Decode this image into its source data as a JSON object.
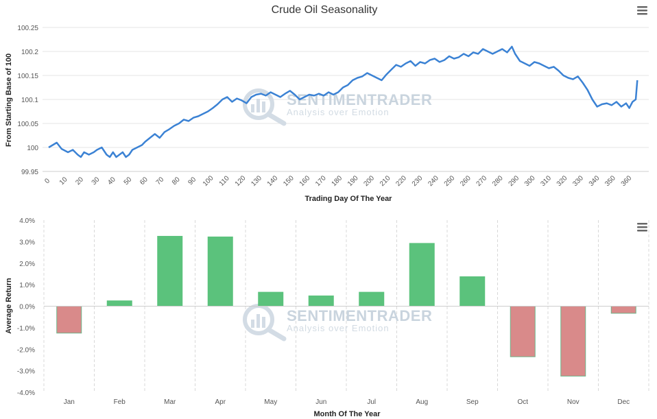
{
  "title": "Crude Oil Seasonality",
  "watermark": {
    "brand": "SENTIMENTRADER",
    "tagline": "Analysis over Emotion"
  },
  "colors": {
    "line": "#3b82d4",
    "positive": "#5bc27c",
    "negative": "#d98a8a",
    "grid": "#e6e6e6",
    "menu": "#666666"
  },
  "chart_data": [
    {
      "type": "line",
      "title": "Crude Oil Seasonality",
      "xlabel": "Trading Day Of The Year",
      "ylabel": "From Starting Base of 100",
      "xlim": [
        0,
        365
      ],
      "ylim": [
        99.95,
        100.25
      ],
      "x_ticks": [
        0,
        10,
        20,
        30,
        40,
        50,
        60,
        70,
        80,
        90,
        100,
        110,
        120,
        130,
        140,
        150,
        160,
        170,
        180,
        190,
        200,
        210,
        220,
        230,
        240,
        250,
        260,
        270,
        280,
        290,
        300,
        310,
        320,
        330,
        340,
        350,
        360
      ],
      "y_ticks": [
        99.95,
        100,
        100.05,
        100.1,
        100.15,
        100.2,
        100.25
      ],
      "y_tick_labels": [
        "99.95",
        "100",
        "100.05",
        "100.1",
        "100.15",
        "100.2",
        "100.25"
      ],
      "grid": "horizontal",
      "series": [
        {
          "x": [
            0,
            5,
            8,
            12,
            15,
            18,
            20,
            22,
            25,
            28,
            30,
            33,
            36,
            38,
            40,
            42,
            44,
            46,
            48,
            50,
            52,
            55,
            58,
            60,
            63,
            66,
            69,
            72,
            75,
            78,
            81,
            84,
            87,
            90,
            93,
            96,
            99,
            102,
            105,
            108,
            111,
            114,
            117,
            120,
            123,
            126,
            129,
            132,
            135,
            138,
            141,
            144,
            147,
            150,
            153,
            156,
            159,
            162,
            165,
            168,
            171,
            174,
            177,
            180,
            183,
            186,
            189,
            192,
            195,
            198,
            201,
            204,
            207,
            210,
            213,
            216,
            219,
            222,
            225,
            228,
            231,
            234,
            237,
            240,
            243,
            246,
            249,
            252,
            255,
            258,
            261,
            264,
            267,
            270,
            273,
            276,
            279,
            282,
            285,
            288,
            290,
            293,
            296,
            299,
            302,
            305,
            308,
            311,
            314,
            317,
            320,
            323,
            326,
            329,
            332,
            335,
            338,
            341,
            344,
            347,
            350,
            353,
            356,
            359,
            361,
            363,
            365,
            366
          ],
          "y": [
            100.0,
            100.01,
            99.997,
            99.99,
            99.995,
            99.985,
            99.98,
            99.99,
            99.985,
            99.99,
            99.995,
            100.0,
            99.985,
            99.98,
            99.99,
            99.98,
            99.985,
            99.99,
            99.98,
            99.985,
            99.995,
            100.0,
            100.005,
            100.012,
            100.02,
            100.028,
            100.02,
            100.032,
            100.038,
            100.045,
            100.05,
            100.058,
            100.055,
            100.062,
            100.065,
            100.07,
            100.075,
            100.082,
            100.09,
            100.1,
            100.105,
            100.095,
            100.102,
            100.098,
            100.092,
            100.105,
            100.11,
            100.112,
            100.108,
            100.115,
            100.11,
            100.105,
            100.112,
            100.118,
            100.11,
            100.1,
            100.105,
            100.11,
            100.108,
            100.112,
            100.108,
            100.115,
            100.11,
            100.115,
            100.125,
            100.13,
            100.14,
            100.145,
            100.148,
            100.155,
            100.15,
            100.145,
            100.14,
            100.152,
            100.162,
            100.172,
            100.168,
            100.175,
            100.18,
            100.17,
            100.178,
            100.175,
            100.182,
            100.185,
            100.178,
            100.182,
            100.19,
            100.185,
            100.188,
            100.195,
            100.19,
            100.198,
            100.195,
            100.205,
            100.2,
            100.195,
            100.2,
            100.205,
            100.198,
            100.21,
            100.195,
            100.18,
            100.175,
            100.17,
            100.178,
            100.175,
            100.17,
            100.165,
            100.168,
            100.16,
            100.15,
            100.145,
            100.142,
            100.148,
            100.135,
            100.12,
            100.1,
            100.085,
            100.09,
            100.092,
            100.088,
            100.095,
            100.085,
            100.092,
            100.082,
            100.095,
            100.1,
            100.14
          ]
        }
      ]
    },
    {
      "type": "bar",
      "xlabel": "Month Of The Year",
      "ylabel": "Average Return",
      "ylim": [
        -4.0,
        4.0
      ],
      "y_ticks": [
        4,
        3,
        2,
        1,
        0,
        -1,
        -2,
        -3,
        -4
      ],
      "y_tick_labels": [
        "4.0%",
        "3.0%",
        "2.0%",
        "1.0%",
        "0.0%",
        "-1.0%",
        "-2.0%",
        "-3.0%",
        "-4.0%"
      ],
      "grid": "vertical dashed",
      "categories": [
        "Jan",
        "Feb",
        "Mar",
        "Apr",
        "May",
        "Jun",
        "Jul",
        "Aug",
        "Sep",
        "Oct",
        "Nov",
        "Dec"
      ],
      "values": [
        -1.25,
        0.25,
        3.25,
        3.22,
        0.65,
        0.48,
        0.65,
        2.92,
        1.37,
        -2.35,
        -3.25,
        -0.33
      ]
    }
  ]
}
